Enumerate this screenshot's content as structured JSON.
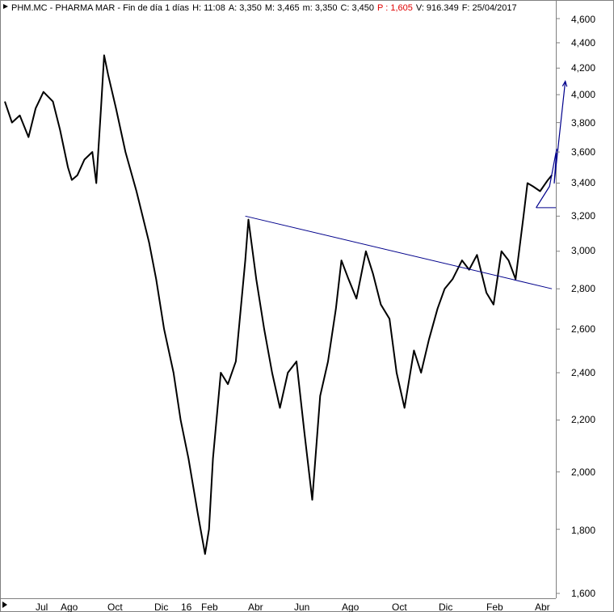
{
  "header": {
    "ticker": "PHM.MC - PHARMA MAR - Fin de día 1 días",
    "high": "H: 11:08",
    "open": "A: 3,350",
    "max": "M: 3,465",
    "min": "m: 3,350",
    "close": "C: 3,450",
    "pct": "P : 1,605",
    "volume": "V: 916.349",
    "date": "F: 25/04/2017"
  },
  "colors": {
    "price_line": "#000000",
    "trend_line": "#00008b",
    "pct_text": "#e00000",
    "background": "#ffffff"
  },
  "chart_data": {
    "type": "line",
    "scale": "log",
    "ylim": [
      1.6,
      4.6
    ],
    "y_ticks": [
      "4,600",
      "4,400",
      "4,200",
      "4,000",
      "3,800",
      "3,600",
      "3,400",
      "3,200",
      "3,000",
      "2,800",
      "2,600",
      "2,400",
      "2,200",
      "2,000",
      "1,800",
      "1,600"
    ],
    "x_ticks": [
      "Jul",
      "Ago",
      "Oct",
      "Dic",
      "16",
      "Feb",
      "Abr",
      "Jun",
      "Ago",
      "Oct",
      "Dic",
      "Feb",
      "Abr"
    ],
    "x_range": [
      "2015-06-01",
      "2017-04-30"
    ],
    "series": [
      {
        "x": [
          "2015-06-01",
          "2015-06-10",
          "2015-06-20",
          "2015-07-01",
          "2015-07-10",
          "2015-07-20",
          "2015-08-01",
          "2015-08-10",
          "2015-08-20",
          "2015-08-25",
          "2015-09-01",
          "2015-09-10",
          "2015-09-20",
          "2015-09-25",
          "2015-10-01",
          "2015-10-05",
          "2015-10-10",
          "2015-10-20",
          "2015-11-01",
          "2015-11-15",
          "2015-12-01",
          "2015-12-10",
          "2015-12-20",
          "2016-01-01",
          "2016-01-10",
          "2016-01-20",
          "2016-02-01",
          "2016-02-10",
          "2016-02-15",
          "2016-02-20",
          "2016-03-01",
          "2016-03-10",
          "2016-03-20",
          "2016-04-01",
          "2016-04-05",
          "2016-04-15",
          "2016-04-25",
          "2016-05-05",
          "2016-05-15",
          "2016-05-25",
          "2016-06-05",
          "2016-06-15",
          "2016-06-25",
          "2016-07-05",
          "2016-07-15",
          "2016-07-25",
          "2016-08-01",
          "2016-08-10",
          "2016-08-20",
          "2016-09-01",
          "2016-09-10",
          "2016-09-20",
          "2016-10-01",
          "2016-10-10",
          "2016-10-20",
          "2016-11-01",
          "2016-11-10",
          "2016-11-20",
          "2016-12-01",
          "2016-12-10",
          "2016-12-20",
          "2017-01-01",
          "2017-01-10",
          "2017-01-20",
          "2017-02-01",
          "2017-02-10",
          "2017-02-20",
          "2017-03-01",
          "2017-03-10",
          "2017-03-20",
          "2017-03-25",
          "2017-04-01",
          "2017-04-10",
          "2017-04-20",
          "2017-04-25"
        ],
        "y": [
          3.95,
          3.8,
          3.85,
          3.7,
          3.9,
          4.02,
          3.95,
          3.75,
          3.5,
          3.42,
          3.45,
          3.55,
          3.6,
          3.4,
          3.9,
          4.3,
          4.15,
          3.9,
          3.6,
          3.35,
          3.05,
          2.85,
          2.6,
          2.4,
          2.2,
          2.05,
          1.85,
          1.72,
          1.8,
          2.05,
          2.4,
          2.35,
          2.45,
          2.95,
          3.18,
          2.85,
          2.6,
          2.4,
          2.25,
          2.4,
          2.45,
          2.15,
          1.9,
          2.3,
          2.45,
          2.7,
          2.95,
          2.85,
          2.75,
          3.0,
          2.88,
          2.72,
          2.65,
          2.4,
          2.25,
          2.5,
          2.4,
          2.55,
          2.7,
          2.8,
          2.85,
          2.95,
          2.9,
          2.98,
          2.78,
          2.72,
          3.0,
          2.95,
          2.85,
          3.2,
          3.4,
          3.38,
          3.35,
          3.42,
          3.45
        ]
      }
    ],
    "trendline": {
      "x": [
        "2016-04-01",
        "2017-04-25"
      ],
      "y": [
        3.2,
        2.8
      ]
    },
    "projection": {
      "x": [
        "2017-04-05",
        "2017-04-22",
        "2017-05-01",
        "2017-04-28",
        "2017-05-12"
      ],
      "y": [
        3.25,
        3.38,
        3.62,
        3.4,
        4.1
      ]
    },
    "support_line": {
      "x": [
        "2017-04-05",
        "2017-04-30"
      ],
      "y": [
        3.25,
        3.25
      ]
    },
    "grid": false,
    "legend": "none"
  }
}
